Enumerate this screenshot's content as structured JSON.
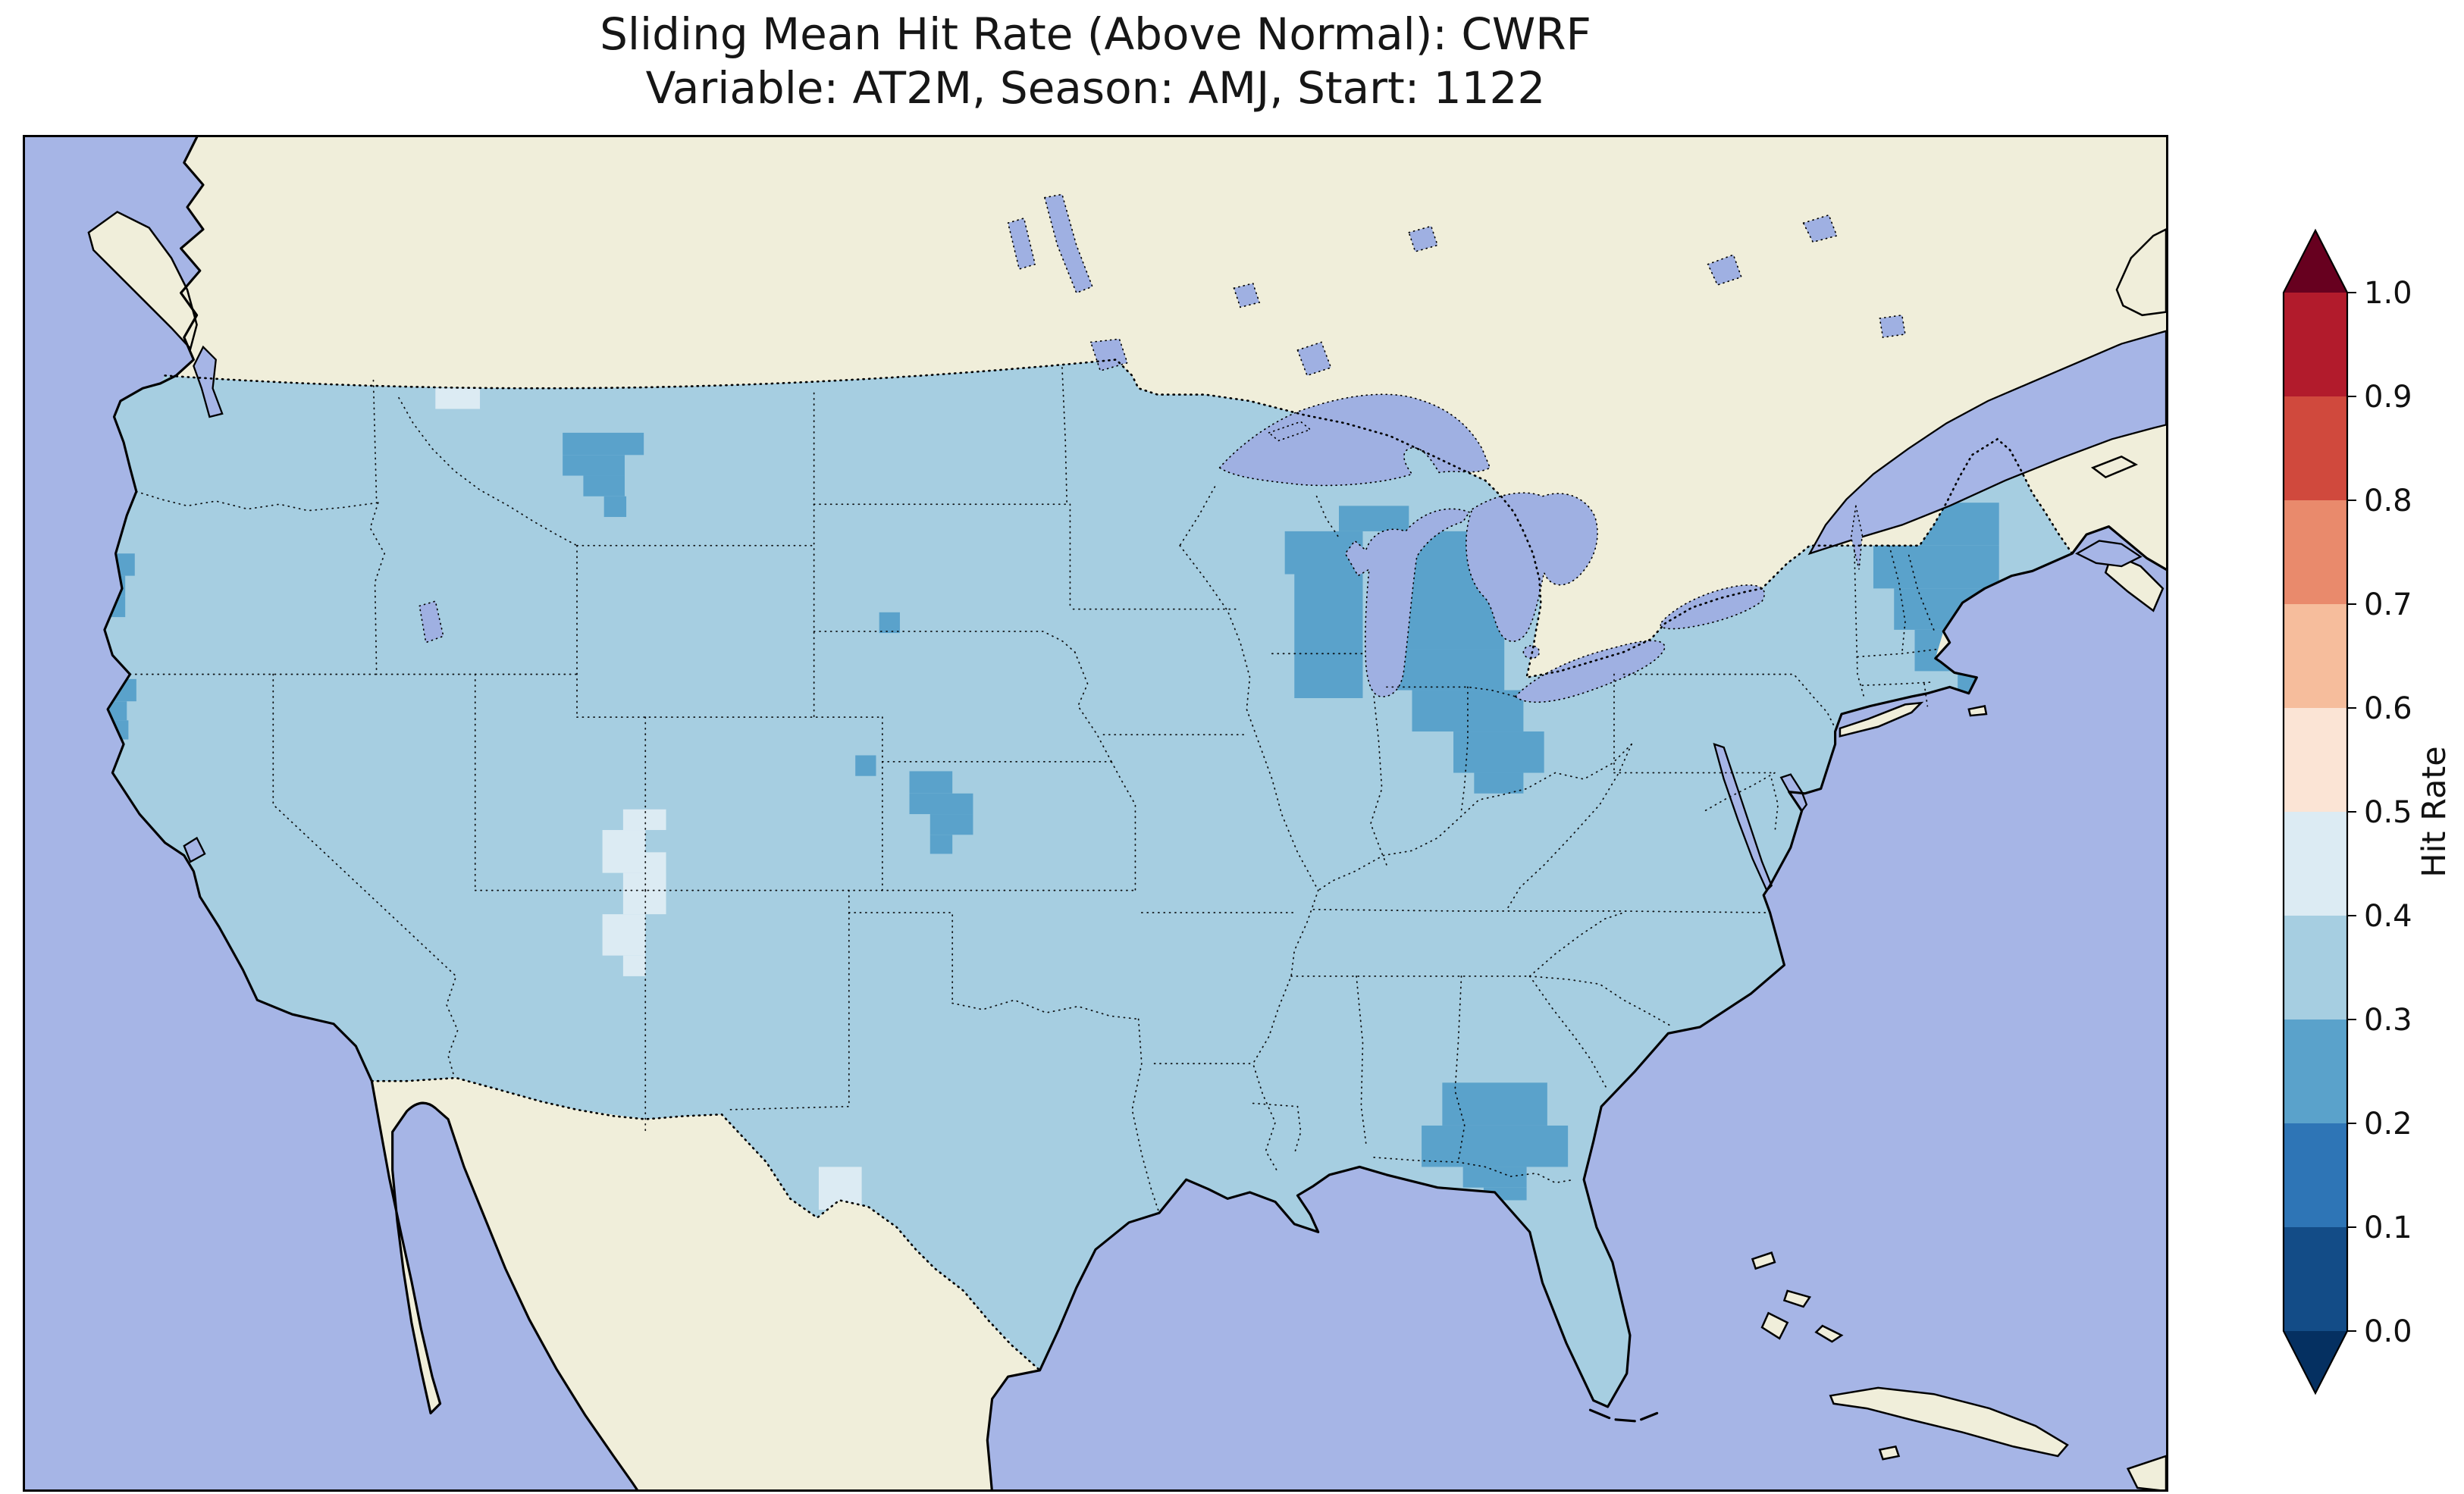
{
  "title": {
    "line1": "Sliding Mean Hit Rate (Above Normal): CWRF",
    "line2": "Variable: AT2M, Season: AMJ, Start: 1122"
  },
  "colorbar": {
    "label": "Hit Rate",
    "ticks": [
      "1.0",
      "0.9",
      "0.8",
      "0.7",
      "0.6",
      "0.5",
      "0.4",
      "0.3",
      "0.2",
      "0.1",
      "0.0"
    ],
    "over_color": "#67001f",
    "under_color": "#053061",
    "segment_colors_top_to_bottom": [
      "#b21b2c",
      "#d0493d",
      "#e98a6c",
      "#f6bd9c",
      "#fbe4d5",
      "#dcebf3",
      "#a6cee1",
      "#5aa2cb",
      "#2e75b6",
      "#134c87"
    ]
  },
  "colors": {
    "ocean": "#a6b5e6",
    "land": "#f0eeda",
    "lake": "#9fb0e2",
    "us_base": "#a6cee1",
    "patch_dark": "#5aa2cb",
    "patch_light": "#dcebf3",
    "frame": "#000000"
  },
  "chart_data": {
    "type": "heatmap",
    "title": "Sliding Mean Hit Rate (Above Normal): CWRF",
    "subtitle": "Variable: AT2M, Season: AMJ, Start: 1122",
    "model": "CWRF",
    "variable": "AT2M",
    "season": "AMJ",
    "start": "1122",
    "metric": "Hit Rate",
    "category": "Above Normal",
    "colorbar": {
      "label": "Hit Rate",
      "range": [
        0.0,
        1.0
      ],
      "tick_step": 0.1,
      "extend": "both",
      "colormap": "RdBu_r (blue low, red high)"
    },
    "dominant_bin": [
      0.3,
      0.4
    ],
    "regions": [
      {
        "area": "most of contiguous United States",
        "hit_rate_bin": [
          0.3,
          0.4
        ]
      },
      {
        "area": "Lake Michigan / Michigan / Indiana / Ohio belt",
        "hit_rate_bin": [
          0.2,
          0.3
        ]
      },
      {
        "area": "central Montana",
        "hit_rate_bin": [
          0.2,
          0.3
        ]
      },
      {
        "area": "Oregon and northern California coast",
        "hit_rate_bin": [
          0.2,
          0.3
        ]
      },
      {
        "area": "western Kansas",
        "hit_rate_bin": [
          0.2,
          0.3
        ]
      },
      {
        "area": "coastal New England / Maine",
        "hit_rate_bin": [
          0.2,
          0.3
        ]
      },
      {
        "area": "Alabama / Georgia / Florida panhandle",
        "hit_rate_bin": [
          0.2,
          0.3
        ]
      },
      {
        "area": "eastern Utah / western Colorado",
        "hit_rate_bin": [
          0.4,
          0.5
        ]
      },
      {
        "area": "west Texas (small patch)",
        "hit_rate_bin": [
          0.4,
          0.5
        ]
      },
      {
        "area": "scattered single cells (south Florida, south Texas, southern California coast, northern Montana border)",
        "hit_rate_bin": [
          0.4,
          0.5
        ]
      }
    ]
  }
}
